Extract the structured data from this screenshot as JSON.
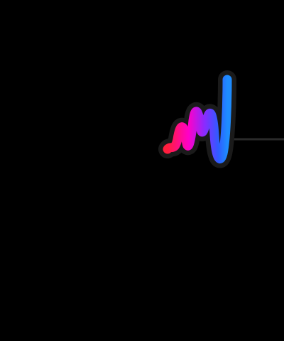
{
  "scene": {
    "description_free": true,
    "background_color": "#000000",
    "stroke": {
      "gradient_colors": [
        "#ff1e3c",
        "#ff00c8",
        "#8a2bff",
        "#2f5bff",
        "#1e8cff"
      ],
      "shadow_color": "#1a1a1a"
    },
    "line": {
      "color": "#2a2a2a"
    }
  }
}
